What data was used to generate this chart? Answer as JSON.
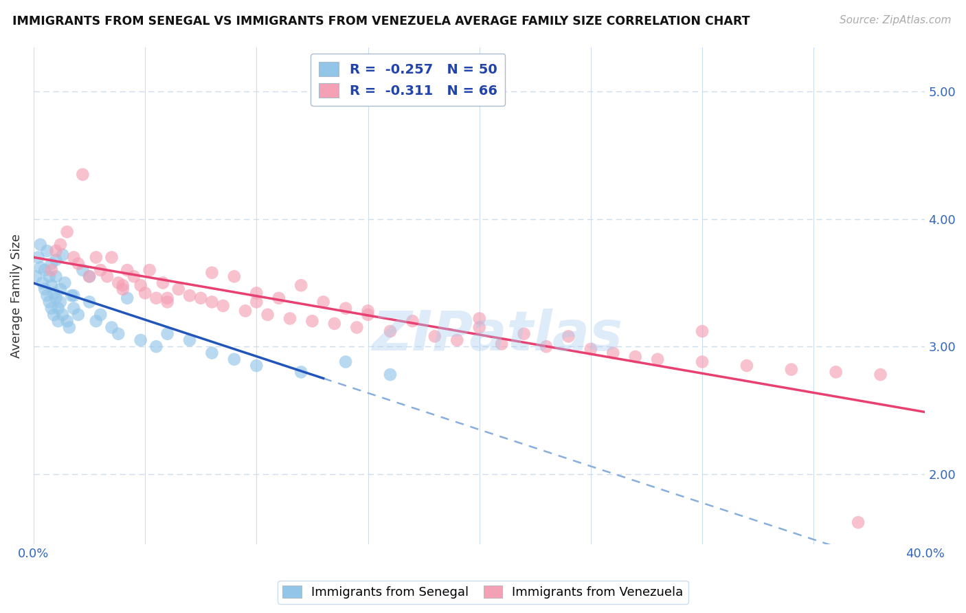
{
  "title": "IMMIGRANTS FROM SENEGAL VS IMMIGRANTS FROM VENEZUELA AVERAGE FAMILY SIZE CORRELATION CHART",
  "source": "Source: ZipAtlas.com",
  "ylabel": "Average Family Size",
  "xlim": [
    0.0,
    0.4
  ],
  "ylim": [
    1.45,
    5.35
  ],
  "yticks_right": [
    2.0,
    3.0,
    4.0,
    5.0
  ],
  "senegal_R": -0.257,
  "senegal_N": 50,
  "venezuela_R": -0.311,
  "venezuela_N": 66,
  "senegal_color": "#92C5E8",
  "venezuela_color": "#F4A0B5",
  "senegal_line_color": "#2255BB",
  "venezuela_line_color": "#E84070",
  "dashed_line_color": "#88AEDD",
  "background_color": "#FFFFFF",
  "senegal_x": [
    0.001,
    0.002,
    0.003,
    0.004,
    0.005,
    0.005,
    0.006,
    0.007,
    0.007,
    0.008,
    0.008,
    0.009,
    0.009,
    0.01,
    0.01,
    0.011,
    0.011,
    0.012,
    0.012,
    0.013,
    0.014,
    0.015,
    0.016,
    0.017,
    0.018,
    0.02,
    0.022,
    0.025,
    0.028,
    0.03,
    0.035,
    0.038,
    0.042,
    0.048,
    0.055,
    0.06,
    0.07,
    0.08,
    0.09,
    0.1,
    0.003,
    0.006,
    0.008,
    0.01,
    0.013,
    0.018,
    0.025,
    0.12,
    0.14,
    0.16
  ],
  "senegal_y": [
    3.55,
    3.7,
    3.62,
    3.5,
    3.45,
    3.6,
    3.4,
    3.55,
    3.35,
    3.48,
    3.3,
    3.42,
    3.25,
    3.38,
    3.55,
    3.3,
    3.2,
    3.35,
    3.45,
    3.25,
    3.5,
    3.2,
    3.15,
    3.4,
    3.3,
    3.25,
    3.6,
    3.35,
    3.2,
    3.25,
    3.15,
    3.1,
    3.38,
    3.05,
    3.0,
    3.1,
    3.05,
    2.95,
    2.9,
    2.85,
    3.8,
    3.75,
    3.65,
    3.68,
    3.72,
    3.4,
    3.55,
    2.8,
    2.88,
    2.78
  ],
  "venezuela_x": [
    0.008,
    0.01,
    0.012,
    0.015,
    0.018,
    0.02,
    0.022,
    0.025,
    0.028,
    0.03,
    0.033,
    0.035,
    0.038,
    0.04,
    0.042,
    0.045,
    0.048,
    0.05,
    0.052,
    0.055,
    0.058,
    0.06,
    0.065,
    0.07,
    0.075,
    0.08,
    0.085,
    0.09,
    0.095,
    0.1,
    0.105,
    0.11,
    0.115,
    0.12,
    0.125,
    0.13,
    0.135,
    0.14,
    0.145,
    0.15,
    0.16,
    0.17,
    0.18,
    0.19,
    0.2,
    0.21,
    0.22,
    0.23,
    0.24,
    0.25,
    0.26,
    0.27,
    0.28,
    0.3,
    0.32,
    0.34,
    0.36,
    0.38,
    0.04,
    0.06,
    0.08,
    0.1,
    0.15,
    0.2,
    0.3,
    0.37
  ],
  "venezuela_y": [
    3.6,
    3.75,
    3.8,
    3.9,
    3.7,
    3.65,
    4.35,
    3.55,
    3.7,
    3.6,
    3.55,
    3.7,
    3.5,
    3.45,
    3.6,
    3.55,
    3.48,
    3.42,
    3.6,
    3.38,
    3.5,
    3.35,
    3.45,
    3.4,
    3.38,
    3.35,
    3.32,
    3.55,
    3.28,
    3.42,
    3.25,
    3.38,
    3.22,
    3.48,
    3.2,
    3.35,
    3.18,
    3.3,
    3.15,
    3.25,
    3.12,
    3.2,
    3.08,
    3.05,
    3.15,
    3.02,
    3.1,
    3.0,
    3.08,
    2.98,
    2.95,
    2.92,
    2.9,
    2.88,
    2.85,
    2.82,
    2.8,
    2.78,
    3.48,
    3.38,
    3.58,
    3.35,
    3.28,
    3.22,
    3.12,
    1.62
  ],
  "senegal_line_x_end": 0.13,
  "dashed_line_x_start": 0.13
}
